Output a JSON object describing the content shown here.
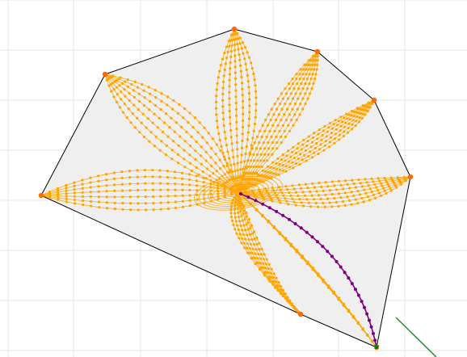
{
  "colors": {
    "background": "#ffffff",
    "grid": "#e6e6e6",
    "polygon_fill": "#efefef",
    "polygon_edge": "#000000",
    "flow_lines": "#ffa500",
    "vertex_dots": "#ff6a00",
    "path": "#800080",
    "start_marker": "#008000",
    "direction_line": "#228b22"
  },
  "icons": {
    "start_marker": "star-icon"
  },
  "diagram": {
    "description_visible_text": "",
    "polygon_vertex_count": 8,
    "flow_source_vertices": 8,
    "has_center_sink": true,
    "has_highlighted_path": true,
    "has_direction_ray": true
  }
}
